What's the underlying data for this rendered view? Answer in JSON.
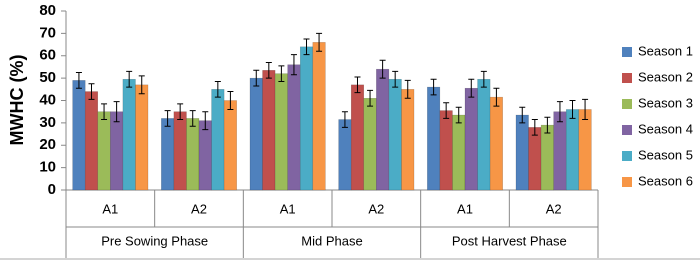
{
  "chart_data": {
    "type": "bar",
    "y_label": "MWHC (%)",
    "categories": [
      "A1",
      "A2",
      "A1",
      "A2",
      "A1",
      "A2"
    ],
    "groups": [
      "Pre Sowing Phase",
      "Mid Phase",
      "Post Harvest Phase"
    ],
    "series": [
      {
        "name": "Season 1",
        "color": "#4f81bd",
        "values": [
          49,
          32,
          50,
          31.5,
          46,
          33.5
        ],
        "errors": [
          3.5,
          3.5,
          3.5,
          3.5,
          3.5,
          3.5
        ]
      },
      {
        "name": "Season 2",
        "color": "#c0504d",
        "values": [
          44,
          35,
          53.5,
          47,
          35.5,
          28
        ],
        "errors": [
          3.5,
          3.5,
          3.5,
          3.5,
          3.5,
          3.5
        ]
      },
      {
        "name": "Season 3",
        "color": "#9bbb59",
        "values": [
          35,
          32,
          52,
          41,
          33.5,
          29
        ],
        "errors": [
          3.5,
          3.5,
          3.5,
          3.5,
          3.5,
          3.5
        ]
      },
      {
        "name": "Season 4",
        "color": "#8064a2",
        "values": [
          35,
          31,
          56,
          54,
          45.5,
          35
        ],
        "errors": [
          4.5,
          4,
          4.5,
          4,
          4,
          4.5
        ]
      },
      {
        "name": "Season 5",
        "color": "#4bacc6",
        "values": [
          49.5,
          45,
          64,
          49.5,
          49.5,
          36
        ],
        "errors": [
          3.5,
          3.5,
          3.5,
          3.5,
          3.5,
          4
        ]
      },
      {
        "name": "Season 6",
        "color": "#f79646",
        "values": [
          47,
          40,
          66,
          45,
          41.5,
          36
        ],
        "errors": [
          4,
          4,
          4,
          4,
          4,
          4.5
        ]
      }
    ],
    "ylim": [
      0,
      80
    ],
    "yticks": [
      0,
      10,
      20,
      30,
      40,
      50,
      60,
      70,
      80
    ]
  }
}
